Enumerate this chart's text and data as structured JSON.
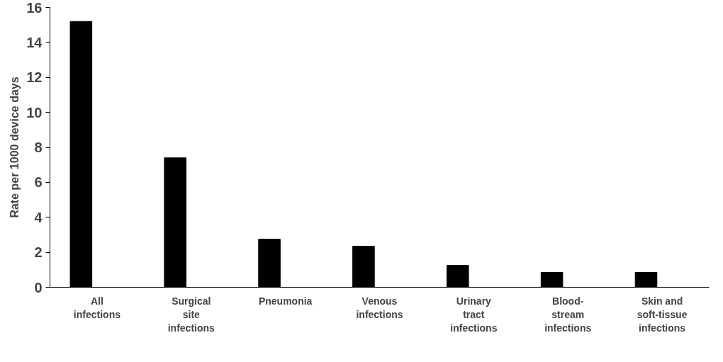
{
  "chart_data": {
    "type": "bar",
    "ylabel": "Rate per 1000 device days",
    "categories": [
      "All\ninfections",
      "Surgical\nsite\ninfections",
      "Pneumonia",
      "Venous\ninfections",
      "Urinary\ntract\ninfections",
      "Blood-\nstream\ninfections",
      "Skin and\nsoft-tissue\ninfections"
    ],
    "values": [
      15.2,
      7.4,
      2.75,
      2.35,
      1.25,
      0.85,
      0.85
    ],
    "color": "#000000",
    "ylim": [
      0,
      16
    ],
    "yticks": [
      0,
      2,
      4,
      6,
      8,
      10,
      12,
      14,
      16
    ],
    "grid": false
  }
}
